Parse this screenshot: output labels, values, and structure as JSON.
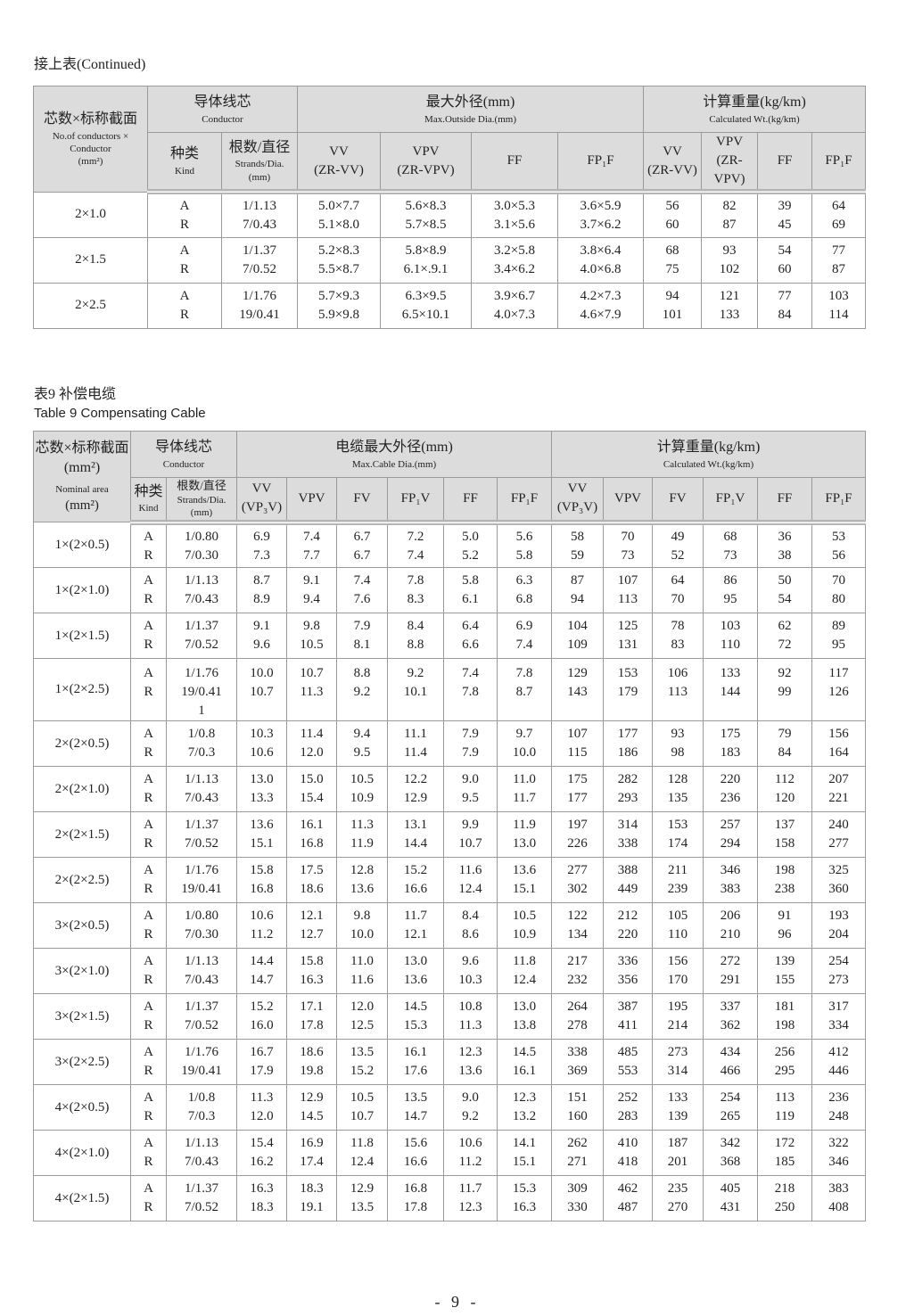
{
  "table1": {
    "caption": "接上表(Continued)",
    "header": {
      "size_zh": "芯数×标称截面",
      "size_en": "No.of conductors × Conductor",
      "size_unit": "(mm²)",
      "conductor_zh": "导体线芯",
      "conductor_en": "Conductor",
      "kind_zh": "种类",
      "kind_en": "Kind",
      "strands_zh": "根数/直径",
      "strands_en": "Strands/Dia.",
      "strands_unit": "(mm)",
      "dia_zh": "最大外径(mm)",
      "dia_en": "Max.Outside Dia.(mm)",
      "wt_zh": "计算重量(kg/km)",
      "wt_en": "Calculated Wt.(kg/km)",
      "dia_cols": [
        "VV",
        "(ZR-VV)",
        "VPV",
        "(ZR-VPV)",
        "FF",
        "FP₁F"
      ],
      "wt_cols": [
        "VV",
        "(ZR-VV)",
        "VPV",
        "(ZR-VPV)",
        "FF",
        "FP₁F"
      ]
    },
    "rows": [
      {
        "size": "2×1.0",
        "kind": [
          "A",
          "R"
        ],
        "strands": [
          "1/1.13",
          "7/0.43"
        ],
        "values": [
          [
            "5.0×7.7",
            "5.1×8.0"
          ],
          [
            "5.6×8.3",
            "5.7×8.5"
          ],
          [
            "3.0×5.3",
            "3.1×5.6"
          ],
          [
            "3.6×5.9",
            "3.7×6.2"
          ],
          [
            "56",
            "60"
          ],
          [
            "82",
            "87"
          ],
          [
            "39",
            "45"
          ],
          [
            "64",
            "69"
          ]
        ]
      },
      {
        "size": "2×1.5",
        "kind": [
          "A",
          "R"
        ],
        "strands": [
          "1/1.37",
          "7/0.52"
        ],
        "values": [
          [
            "5.2×8.3",
            "5.5×8.7"
          ],
          [
            "5.8×8.9",
            "6.1×.9.1"
          ],
          [
            "3.2×5.8",
            "3.4×6.2"
          ],
          [
            "3.8×6.4",
            "4.0×6.8"
          ],
          [
            "68",
            "75"
          ],
          [
            "93",
            "102"
          ],
          [
            "54",
            "60"
          ],
          [
            "77",
            "87"
          ]
        ]
      },
      {
        "size": "2×2.5",
        "kind": [
          "A",
          "R"
        ],
        "strands": [
          "1/1.76",
          "19/0.41"
        ],
        "values": [
          [
            "5.7×9.3",
            "5.9×9.8"
          ],
          [
            "6.3×9.5",
            "6.5×10.1"
          ],
          [
            "3.9×6.7",
            "4.0×7.3"
          ],
          [
            "4.2×7.3",
            "4.6×7.9"
          ],
          [
            "94",
            "101"
          ],
          [
            "121",
            "133"
          ],
          [
            "77",
            "84"
          ],
          [
            "103",
            "114"
          ]
        ]
      }
    ]
  },
  "table2": {
    "caption_zh": "表9  补偿电缆",
    "caption_en": "Table 9  Compensating Cable",
    "header": {
      "size_zh": "芯数×标称截面(mm²)",
      "size_en": "Nominal area",
      "size_unit": "(mm²)",
      "conductor_zh": "导体线芯",
      "conductor_en": "Conductor",
      "kind_zh": "种类",
      "kind_en": "Kind",
      "strands_zh": "根数/直径",
      "strands_en": "Strands/Dia.",
      "strands_unit": "(mm)",
      "dia_zh": "电缆最大外径(mm)",
      "dia_en": "Max.Cable Dia.(mm)",
      "wt_zh": "计算重量(kg/km)",
      "wt_en": "Calculated Wt.(kg/km)",
      "cols": [
        "VV",
        "(VP₃V)",
        "VPV",
        "FV",
        "FP₁V",
        "FF",
        "FP₁F"
      ]
    },
    "rows": [
      {
        "size": "1×(2×0.5)",
        "strands": [
          "1/0.80",
          "7/0.30"
        ],
        "a": [
          "6.9",
          "7.4",
          "6.7",
          "7.2",
          "5.0",
          "5.6",
          "58",
          "70",
          "49",
          "68",
          "36",
          "53"
        ],
        "r": [
          "7.3",
          "7.7",
          "6.7",
          "7.4",
          "5.2",
          "5.8",
          "59",
          "73",
          "52",
          "73",
          "38",
          "56"
        ]
      },
      {
        "size": "1×(2×1.0)",
        "strands": [
          "1/1.13",
          "7/0.43"
        ],
        "a": [
          "8.7",
          "9.1",
          "7.4",
          "7.8",
          "5.8",
          "6.3",
          "87",
          "107",
          "64",
          "86",
          "50",
          "70"
        ],
        "r": [
          "8.9",
          "9.4",
          "7.6",
          "8.3",
          "6.1",
          "6.8",
          "94",
          "113",
          "70",
          "95",
          "54",
          "80"
        ]
      },
      {
        "size": "1×(2×1.5)",
        "strands": [
          "1/1.37",
          "7/0.52"
        ],
        "a": [
          "9.1",
          "9.8",
          "7.9",
          "8.4",
          "6.4",
          "6.9",
          "104",
          "125",
          "78",
          "103",
          "62",
          "89"
        ],
        "r": [
          "9.6",
          "10.5",
          "8.1",
          "8.8",
          "6.6",
          "7.4",
          "109",
          "131",
          "83",
          "110",
          "72",
          "95"
        ]
      },
      {
        "size": "1×(2×2.5)",
        "strands": [
          "1/1.76",
          "19/0.411"
        ],
        "a": [
          "10.0",
          "10.7",
          "8.8",
          "9.2",
          "7.4",
          "7.8",
          "129",
          "153",
          "106",
          "133",
          "92",
          "117"
        ],
        "r": [
          "10.7",
          "11.3",
          "9.2",
          "10.1",
          "7.8",
          "8.7",
          "143",
          "179",
          "113",
          "144",
          "99",
          "126"
        ]
      },
      {
        "size": "2×(2×0.5)",
        "strands": [
          "1/0.8",
          "7/0.3"
        ],
        "a": [
          "10.3",
          "11.4",
          "9.4",
          "11.1",
          "7.9",
          "9.7",
          "107",
          "177",
          "93",
          "175",
          "79",
          "156"
        ],
        "r": [
          "10.6",
          "12.0",
          "9.5",
          "11.4",
          "7.9",
          "10.0",
          "115",
          "186",
          "98",
          "183",
          "84",
          "164"
        ]
      },
      {
        "size": "2×(2×1.0)",
        "strands": [
          "1/1.13",
          "7/0.43"
        ],
        "a": [
          "13.0",
          "15.0",
          "10.5",
          "12.2",
          "9.0",
          "11.0",
          "175",
          "282",
          "128",
          "220",
          "112",
          "207"
        ],
        "r": [
          "13.3",
          "15.4",
          "10.9",
          "12.9",
          "9.5",
          "11.7",
          "177",
          "293",
          "135",
          "236",
          "120",
          "221"
        ]
      },
      {
        "size": "2×(2×1.5)",
        "strands": [
          "1/1.37",
          "7/0.52"
        ],
        "a": [
          "13.6",
          "16.1",
          "11.3",
          "13.1",
          "9.9",
          "11.9",
          "197",
          "314",
          "153",
          "257",
          "137",
          "240"
        ],
        "r": [
          "15.1",
          "16.8",
          "11.9",
          "14.4",
          "10.7",
          "13.0",
          "226",
          "338",
          "174",
          "294",
          "158",
          "277"
        ]
      },
      {
        "size": "2×(2×2.5)",
        "strands": [
          "1/1.76",
          "19/0.41"
        ],
        "a": [
          "15.8",
          "17.5",
          "12.8",
          "15.2",
          "11.6",
          "13.6",
          "277",
          "388",
          "211",
          "346",
          "198",
          "325"
        ],
        "r": [
          "16.8",
          "18.6",
          "13.6",
          "16.6",
          "12.4",
          "15.1",
          "302",
          "449",
          "239",
          "383",
          "238",
          "360"
        ]
      },
      {
        "size": "3×(2×0.5)",
        "strands": [
          "1/0.80",
          "7/0.30"
        ],
        "a": [
          "10.6",
          "12.1",
          "9.8",
          "11.7",
          "8.4",
          "10.5",
          "122",
          "212",
          "105",
          "206",
          "91",
          "193"
        ],
        "r": [
          "11.2",
          "12.7",
          "10.0",
          "12.1",
          "8.6",
          "10.9",
          "134",
          "220",
          "110",
          "210",
          "96",
          "204"
        ]
      },
      {
        "size": "3×(2×1.0)",
        "strands": [
          "1/1.13",
          "7/0.43"
        ],
        "a": [
          "14.4",
          "15.8",
          "11.0",
          "13.0",
          "9.6",
          "11.8",
          "217",
          "336",
          "156",
          "272",
          "139",
          "254"
        ],
        "r": [
          "14.7",
          "16.3",
          "11.6",
          "13.6",
          "10.3",
          "12.4",
          "232",
          "356",
          "170",
          "291",
          "155",
          "273"
        ]
      },
      {
        "size": "3×(2×1.5)",
        "strands": [
          "1/1.37",
          "7/0.52"
        ],
        "a": [
          "15.2",
          "17.1",
          "12.0",
          "14.5",
          "10.8",
          "13.0",
          "264",
          "387",
          "195",
          "337",
          "181",
          "317"
        ],
        "r": [
          "16.0",
          "17.8",
          "12.5",
          "15.3",
          "11.3",
          "13.8",
          "278",
          "411",
          "214",
          "362",
          "198",
          "334"
        ]
      },
      {
        "size": "3×(2×2.5)",
        "strands": [
          "1/1.76",
          "19/0.41"
        ],
        "a": [
          "16.7",
          "18.6",
          "13.5",
          "16.1",
          "12.3",
          "14.5",
          "338",
          "485",
          "273",
          "434",
          "256",
          "412"
        ],
        "r": [
          "17.9",
          "19.8",
          "15.2",
          "17.6",
          "13.6",
          "16.1",
          "369",
          "553",
          "314",
          "466",
          "295",
          "446"
        ]
      },
      {
        "size": "4×(2×0.5)",
        "strands": [
          "1/0.8",
          "7/0.3"
        ],
        "a": [
          "11.3",
          "12.9",
          "10.5",
          "13.5",
          "9.0",
          "12.3",
          "151",
          "252",
          "133",
          "254",
          "113",
          "236"
        ],
        "r": [
          "12.0",
          "14.5",
          "10.7",
          "14.7",
          "9.2",
          "13.2",
          "160",
          "283",
          "139",
          "265",
          "119",
          "248"
        ]
      },
      {
        "size": "4×(2×1.0)",
        "strands": [
          "1/1.13",
          "7/0.43"
        ],
        "a": [
          "15.4",
          "16.9",
          "11.8",
          "15.6",
          "10.6",
          "14.1",
          "262",
          "410",
          "187",
          "342",
          "172",
          "322"
        ],
        "r": [
          "16.2",
          "17.4",
          "12.4",
          "16.6",
          "11.2",
          "15.1",
          "271",
          "418",
          "201",
          "368",
          "185",
          "346"
        ]
      },
      {
        "size": "4×(2×1.5)",
        "strands": [
          "1/1.37",
          "7/0.52"
        ],
        "a": [
          "16.3",
          "18.3",
          "12.9",
          "16.8",
          "11.7",
          "15.3",
          "309",
          "462",
          "235",
          "405",
          "218",
          "383"
        ],
        "r": [
          "18.3",
          "19.1",
          "13.5",
          "17.8",
          "12.3",
          "16.3",
          "330",
          "487",
          "270",
          "431",
          "250",
          "408"
        ]
      }
    ],
    "kind": [
      "A",
      "R"
    ]
  },
  "page_number": "- 9 -"
}
